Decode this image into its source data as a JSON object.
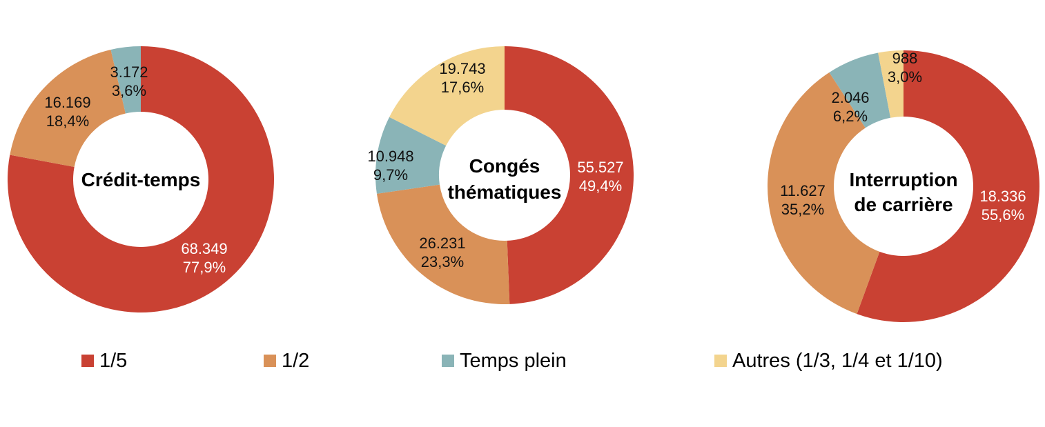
{
  "chart_data": [
    {
      "type": "pie",
      "title": "Crédit-temps",
      "categories": [
        "1/5",
        "1/2",
        "Temps plein"
      ],
      "values": [
        68349,
        16169,
        3172
      ],
      "value_labels": [
        "68.349",
        "16.169",
        "3.172"
      ],
      "percent_labels": [
        "77,9%",
        "18,4%",
        "3,6%"
      ],
      "percents": [
        77.9,
        18.4,
        3.6
      ]
    },
    {
      "type": "pie",
      "title": "Congés thématiques",
      "categories": [
        "1/5",
        "1/2",
        "Temps plein",
        "Autres (1/3, 1/4 et 1/10)"
      ],
      "values": [
        55527,
        26231,
        10948,
        19743
      ],
      "value_labels": [
        "55.527",
        "26.231",
        "10.948",
        "19.743"
      ],
      "percent_labels": [
        "49,4%",
        "23,3%",
        "9,7%",
        "17,6%"
      ],
      "percents": [
        49.4,
        23.3,
        9.7,
        17.6
      ]
    },
    {
      "type": "pie",
      "title": "Interruption de carrière",
      "categories": [
        "1/5",
        "1/2",
        "Temps plein",
        "Autres (1/3, 1/4 et 1/10)"
      ],
      "values": [
        18336,
        11627,
        2046,
        988
      ],
      "value_labels": [
        "18.336",
        "11.627",
        "2.046",
        "988"
      ],
      "percent_labels": [
        "55,6%",
        "35,2%",
        "6,2%",
        "3,0%"
      ],
      "percents": [
        55.6,
        35.2,
        6.2,
        3.0
      ]
    }
  ],
  "legend": {
    "items": [
      {
        "label": "1/5",
        "color": "#c94133"
      },
      {
        "label": "1/2",
        "color": "#d99158"
      },
      {
        "label": "Temps plein",
        "color": "#8ab4b7"
      },
      {
        "label": "Autres (1/3, 1/4 et 1/10)",
        "color": "#f3d48e"
      }
    ]
  },
  "colors": {
    "1/5": "#c94133",
    "1/2": "#d99158",
    "Temps plein": "#8ab4b7",
    "Autres (1/3, 1/4 et 1/10)": "#f3d48e",
    "label_light": "#ffffff",
    "label_dark": "#111111"
  }
}
